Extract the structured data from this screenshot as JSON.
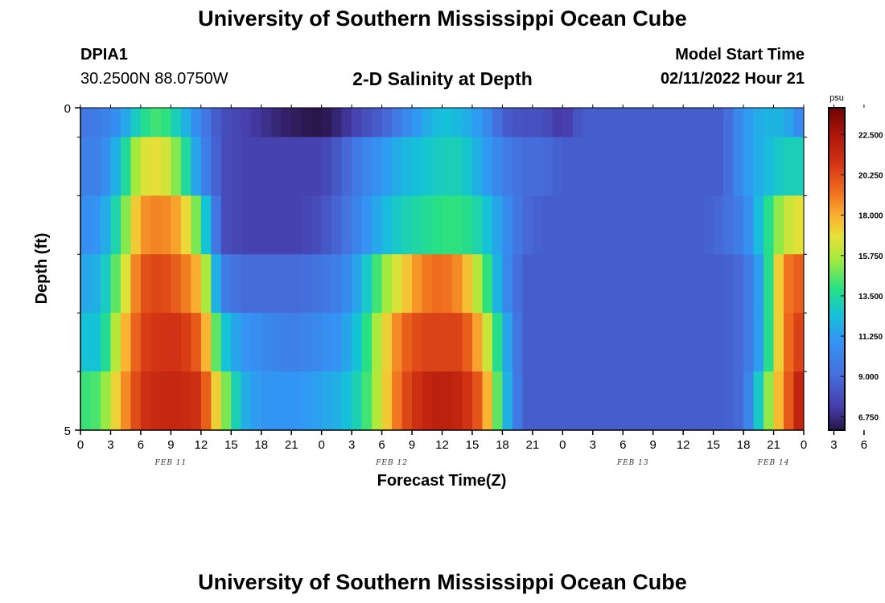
{
  "header": {
    "title": "University of Southern Mississippi Ocean Cube",
    "station": "DPIA1",
    "coords": "30.2500N  88.0750W",
    "plot_title": "2-D Salinity at Depth",
    "model_label": "Model Start Time",
    "model_time": "02/11/2022 Hour 21"
  },
  "footer": {
    "title": "University of Southern Mississippi Ocean Cube"
  },
  "colorbar": {
    "unit": "psu",
    "labels": [
      "22.500",
      "20.250",
      "18.000",
      "15.750",
      "13.500",
      "11.250",
      "9.000",
      "6.750"
    ],
    "values": [
      22.5,
      20.25,
      18.0,
      15.75,
      13.5,
      11.25,
      9.0,
      6.75
    ],
    "range": [
      6.0,
      24.0
    ]
  },
  "chart_data": {
    "type": "heatmap",
    "title": "2-D Salinity at Depth",
    "xlabel": "Forecast Time(Z)",
    "ylabel": "Depth (ft)",
    "x_hours": [
      0,
      72
    ],
    "y_range": [
      0,
      5
    ],
    "y_ticks": [
      0,
      5
    ],
    "x_tick_labels": [
      "0",
      "3",
      "6",
      "9",
      "12",
      "15",
      "18",
      "21",
      "0",
      "3",
      "6",
      "9",
      "12",
      "15",
      "18",
      "21",
      "0",
      "3",
      "6",
      "9",
      "12",
      "15",
      "18",
      "21",
      "0",
      "3",
      "6"
    ],
    "date_labels": [
      {
        "text": "FEB 11",
        "hour": 9
      },
      {
        "text": "FEB 12",
        "hour": 31
      },
      {
        "text": "FEB 13",
        "hour": 55
      },
      {
        "text": "FEB 14",
        "hour": 69
      }
    ],
    "units": "psu",
    "time_keys": [
      0,
      2,
      4,
      6,
      8,
      10,
      12,
      14,
      16,
      18,
      20,
      22,
      24,
      26,
      28,
      30,
      32,
      34,
      36,
      38,
      40,
      42,
      44,
      46,
      48,
      50,
      52,
      54,
      56,
      58,
      60,
      62,
      64,
      66,
      68,
      70,
      72
    ],
    "layers": [
      [
        9.5,
        9.8,
        11,
        13.5,
        14.5,
        12.5,
        10,
        8,
        7.5,
        7,
        6.5,
        6.2,
        6,
        6.8,
        7.8,
        8.5,
        10,
        11.5,
        12.5,
        12,
        11,
        8.5,
        8,
        8,
        7,
        8.5,
        8.5,
        8.5,
        8.5,
        8.5,
        8.5,
        8.5,
        8.5,
        11,
        12,
        12,
        10
      ],
      [
        10,
        10,
        12.5,
        16.5,
        17,
        14.5,
        10.5,
        8,
        7.5,
        7.5,
        7.5,
        7.5,
        7.5,
        8.5,
        10,
        11,
        12,
        12.5,
        13,
        13,
        11.5,
        10,
        9,
        9,
        8.5,
        8.5,
        8.5,
        8.5,
        8.5,
        8.5,
        8.5,
        8.5,
        8.5,
        11,
        12,
        13,
        13
      ],
      [
        10.5,
        11,
        14,
        18.5,
        19,
        18,
        14,
        8,
        7.5,
        7.5,
        7.5,
        7.5,
        8,
        9,
        10.5,
        12,
        13,
        13.5,
        14,
        14,
        13,
        11,
        9,
        8.5,
        8.5,
        8.5,
        8.5,
        8.5,
        8.5,
        8.5,
        8.5,
        8.5,
        9,
        10,
        13,
        16,
        17
      ],
      [
        11.5,
        12,
        15.5,
        20,
        20.5,
        19.5,
        17.5,
        10,
        9,
        9,
        9,
        9,
        9.5,
        10,
        12,
        15,
        17,
        19,
        19.5,
        18.5,
        15,
        11,
        8.5,
        8.5,
        8.5,
        8.5,
        8.5,
        8.5,
        8.5,
        8.5,
        8.5,
        8.5,
        8.5,
        9,
        12,
        19,
        20
      ],
      [
        12.5,
        12.5,
        17,
        20.5,
        21,
        21,
        19.5,
        13,
        11,
        10.5,
        10,
        10,
        10.5,
        11,
        13,
        16.5,
        19.5,
        20.5,
        20.5,
        20.5,
        17.5,
        12.5,
        8.5,
        8.5,
        8.5,
        8.5,
        8.5,
        8.5,
        8.5,
        8.5,
        8.5,
        8.5,
        8.5,
        9,
        12,
        19,
        21
      ],
      [
        14,
        14.5,
        18,
        21,
        21.5,
        21.5,
        21,
        16,
        12,
        11,
        11,
        11,
        11.5,
        12,
        13.5,
        16.5,
        20,
        21.5,
        22,
        21.5,
        19.5,
        13,
        8.5,
        8.5,
        8.5,
        8.5,
        8.5,
        8.5,
        8.5,
        8.5,
        8.5,
        8.5,
        8.5,
        9,
        14,
        19,
        22.5
      ]
    ]
  }
}
